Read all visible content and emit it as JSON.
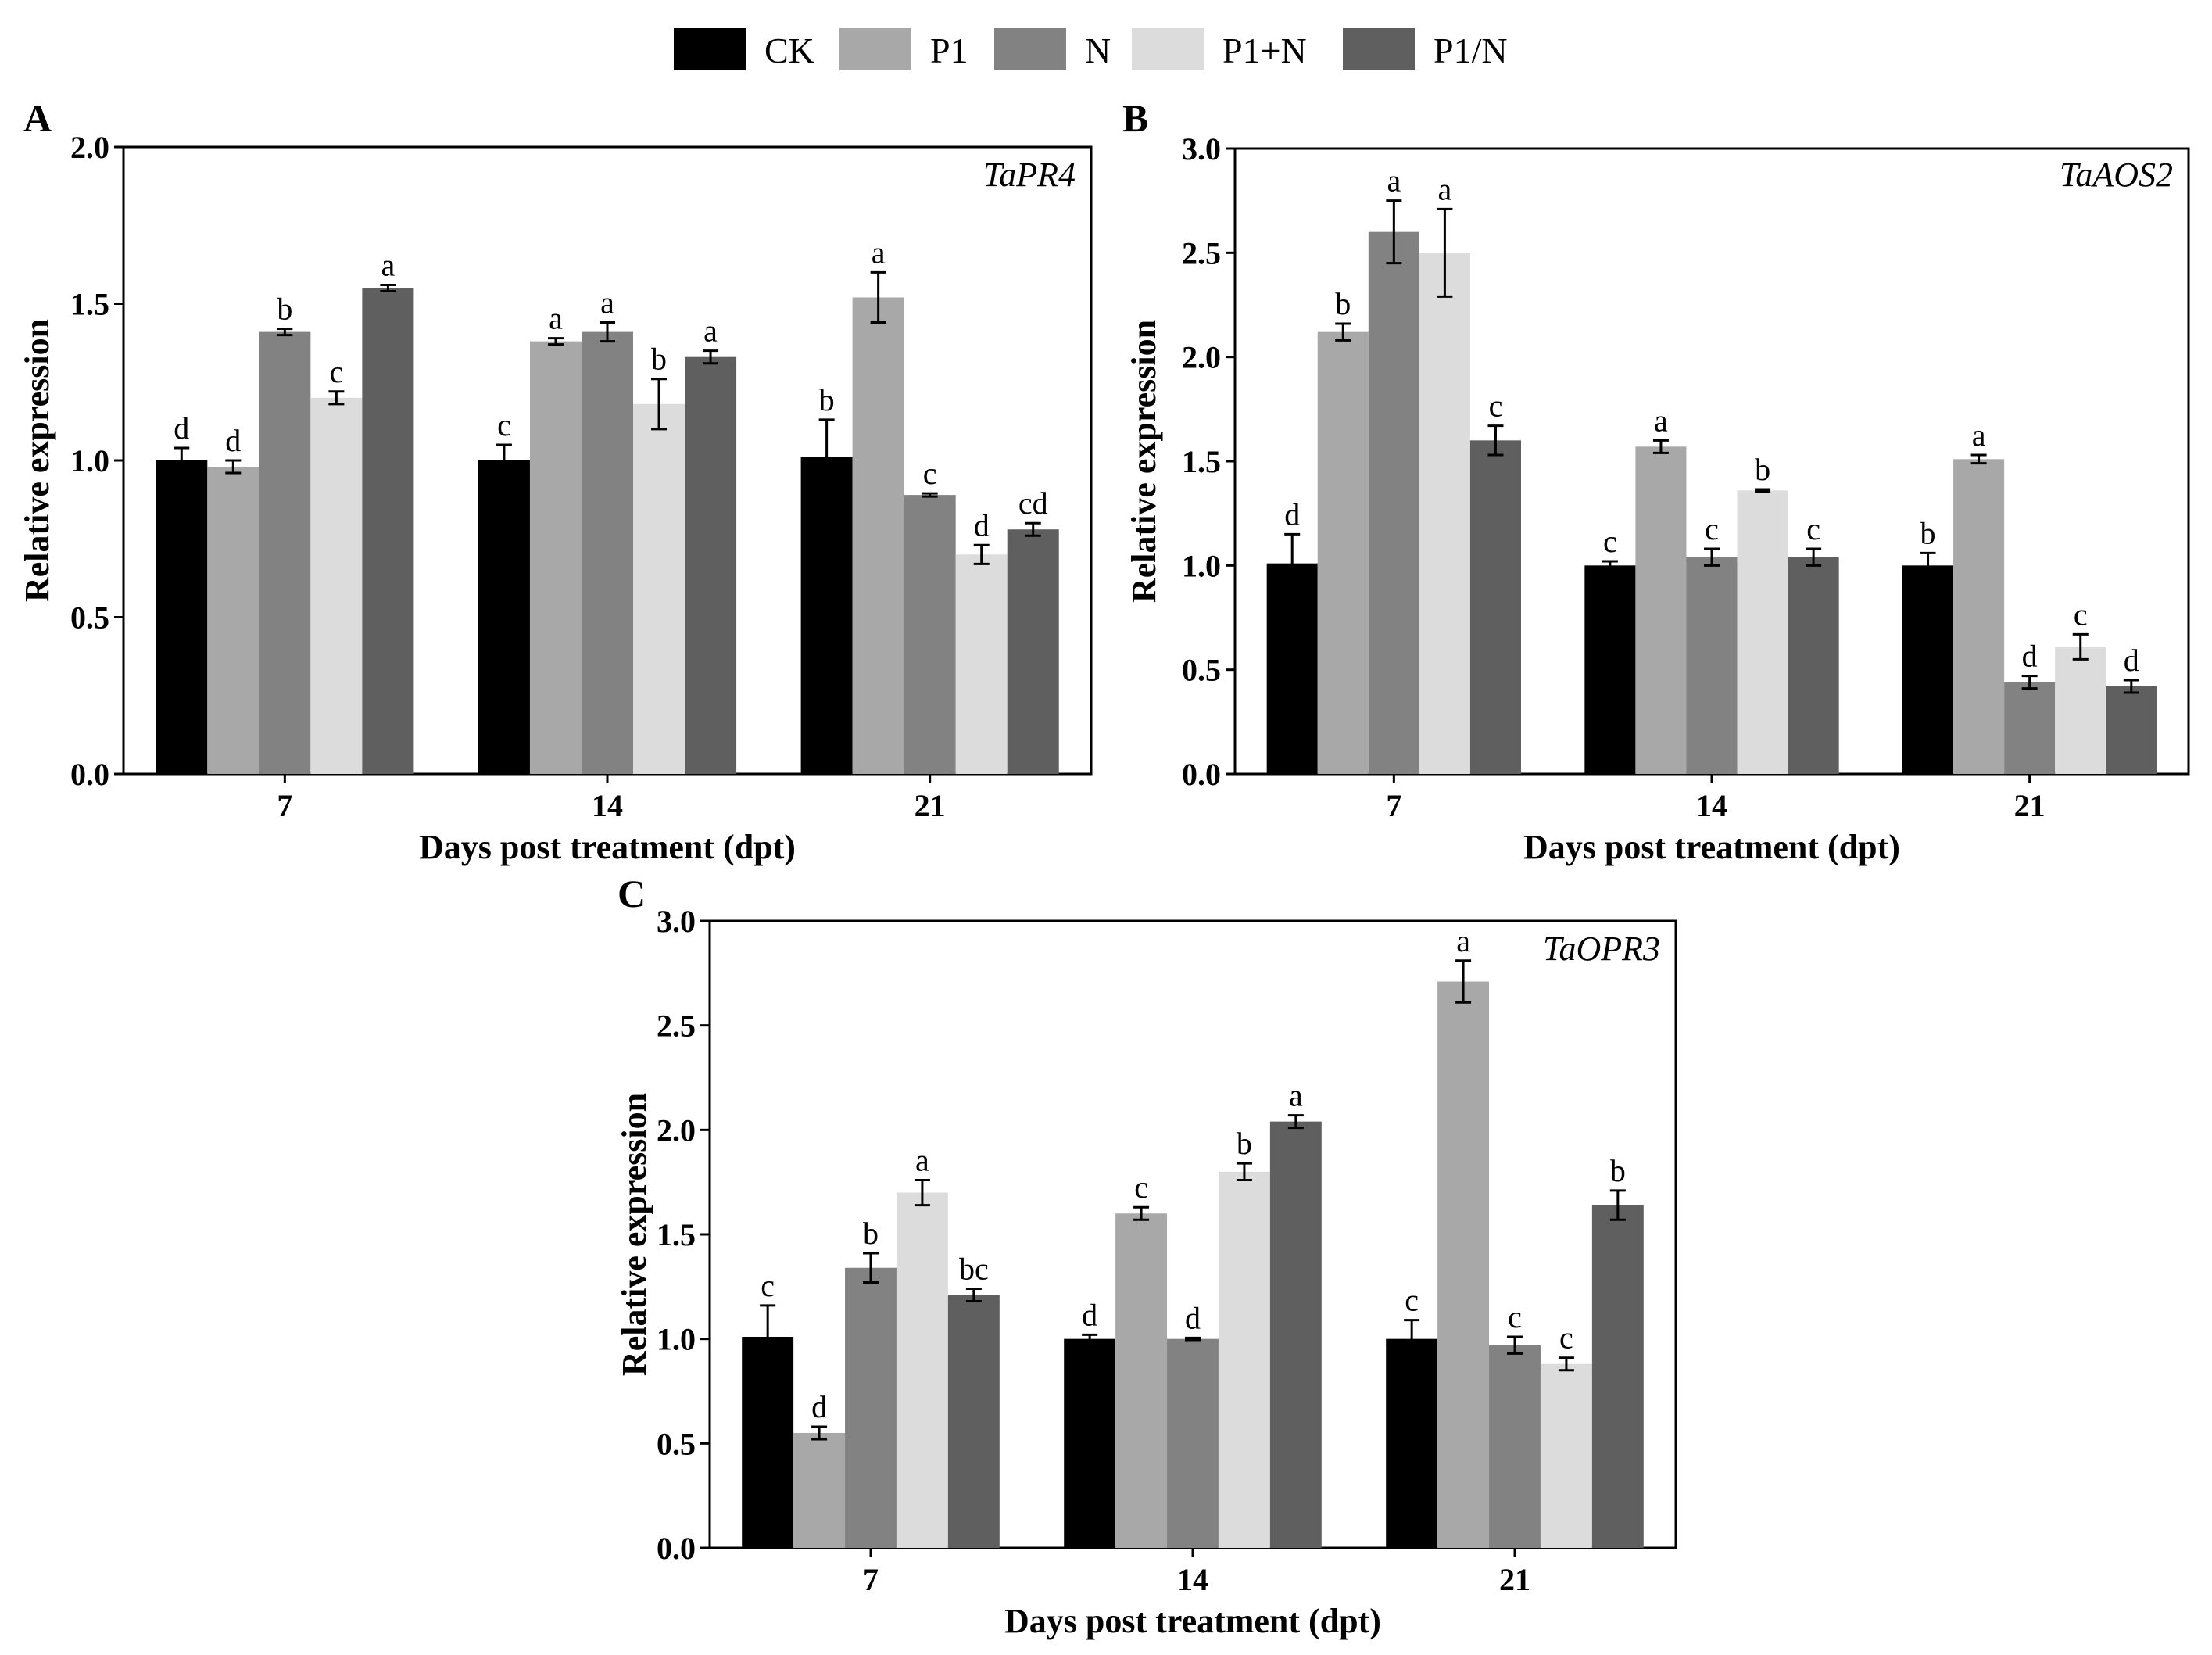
{
  "chart_data": [
    {
      "type": "bar",
      "panel": "A",
      "gene": "TaPR4",
      "xlabel": "Days post treatment (dpt)",
      "ylabel": "Relative expression",
      "ylim": [
        0,
        2.0
      ],
      "yticks": [
        "0.0",
        "0.5",
        "1.0",
        "1.5",
        "2.0"
      ],
      "categories": [
        "7",
        "14",
        "21"
      ],
      "series": [
        {
          "name": "CK",
          "values": [
            1.0,
            1.0,
            1.01
          ],
          "errors": [
            0.04,
            0.05,
            0.12
          ],
          "labels": [
            "d",
            "c",
            "b"
          ]
        },
        {
          "name": "P1",
          "values": [
            0.98,
            1.38,
            1.52
          ],
          "errors": [
            0.02,
            0.01,
            0.08
          ],
          "labels": [
            "d",
            "a",
            "a"
          ]
        },
        {
          "name": "N",
          "values": [
            1.41,
            1.41,
            0.89
          ],
          "errors": [
            0.01,
            0.03,
            0.005
          ],
          "labels": [
            "b",
            "a",
            "c"
          ]
        },
        {
          "name": "P1+N",
          "values": [
            1.2,
            1.18,
            0.7
          ],
          "errors": [
            0.02,
            0.08,
            0.03
          ],
          "labels": [
            "c",
            "b",
            "d"
          ]
        },
        {
          "name": "P1/N",
          "values": [
            1.55,
            1.33,
            0.78
          ],
          "errors": [
            0.01,
            0.02,
            0.02
          ],
          "labels": [
            "a",
            "a",
            "cd"
          ]
        }
      ]
    },
    {
      "type": "bar",
      "panel": "B",
      "gene": "TaAOS2",
      "xlabel": "Days post treatment (dpt)",
      "ylabel": "Relative expression",
      "ylim": [
        0,
        3.0
      ],
      "yticks": [
        "0.0",
        "0.5",
        "1.0",
        "1.5",
        "2.0",
        "2.5",
        "3.0"
      ],
      "categories": [
        "7",
        "14",
        "21"
      ],
      "series": [
        {
          "name": "CK",
          "values": [
            1.01,
            1.0,
            1.0
          ],
          "errors": [
            0.14,
            0.02,
            0.06
          ],
          "labels": [
            "d",
            "c",
            "b"
          ]
        },
        {
          "name": "P1",
          "values": [
            2.12,
            1.57,
            1.51
          ],
          "errors": [
            0.04,
            0.03,
            0.02
          ],
          "labels": [
            "b",
            "a",
            "a"
          ]
        },
        {
          "name": "N",
          "values": [
            2.6,
            1.04,
            0.44
          ],
          "errors": [
            0.15,
            0.04,
            0.03
          ],
          "labels": [
            "a",
            "c",
            "d"
          ]
        },
        {
          "name": "P1+N",
          "values": [
            2.5,
            1.36,
            0.61
          ],
          "errors": [
            0.21,
            0.005,
            0.06
          ],
          "labels": [
            "a",
            "b",
            "c"
          ]
        },
        {
          "name": "P1/N",
          "values": [
            1.6,
            1.04,
            0.42
          ],
          "errors": [
            0.07,
            0.04,
            0.03
          ],
          "labels": [
            "c",
            "c",
            "d"
          ]
        }
      ]
    },
    {
      "type": "bar",
      "panel": "C",
      "gene": "TaOPR3",
      "xlabel": "Days post treatment (dpt)",
      "ylabel": "Relative expression",
      "ylim": [
        0,
        3.0
      ],
      "yticks": [
        "0.0",
        "0.5",
        "1.0",
        "1.5",
        "2.0",
        "2.5",
        "3.0"
      ],
      "categories": [
        "7",
        "14",
        "21"
      ],
      "series": [
        {
          "name": "CK",
          "values": [
            1.01,
            1.0,
            1.0
          ],
          "errors": [
            0.15,
            0.02,
            0.09
          ],
          "labels": [
            "c",
            "d",
            "c"
          ]
        },
        {
          "name": "P1",
          "values": [
            0.55,
            1.6,
            2.71
          ],
          "errors": [
            0.03,
            0.03,
            0.1
          ],
          "labels": [
            "d",
            "c",
            "a"
          ]
        },
        {
          "name": "N",
          "values": [
            1.34,
            1.0,
            0.97
          ],
          "errors": [
            0.07,
            0.005,
            0.04
          ],
          "labels": [
            "b",
            "d",
            "c"
          ]
        },
        {
          "name": "P1+N",
          "values": [
            1.7,
            1.8,
            0.88
          ],
          "errors": [
            0.06,
            0.04,
            0.03
          ],
          "labels": [
            "a",
            "b",
            "c"
          ]
        },
        {
          "name": "P1/N",
          "values": [
            1.21,
            2.04,
            1.64
          ],
          "errors": [
            0.03,
            0.03,
            0.07
          ],
          "labels": [
            "bc",
            "a",
            "b"
          ]
        }
      ]
    }
  ],
  "legend": [
    {
      "name": "CK",
      "color": "#000000"
    },
    {
      "name": "P1",
      "color": "#a8a8a8"
    },
    {
      "name": "N",
      "color": "#828282"
    },
    {
      "name": "P1+N",
      "color": "#dcdcdc"
    },
    {
      "name": "P1/N",
      "color": "#5f5f5f"
    }
  ]
}
